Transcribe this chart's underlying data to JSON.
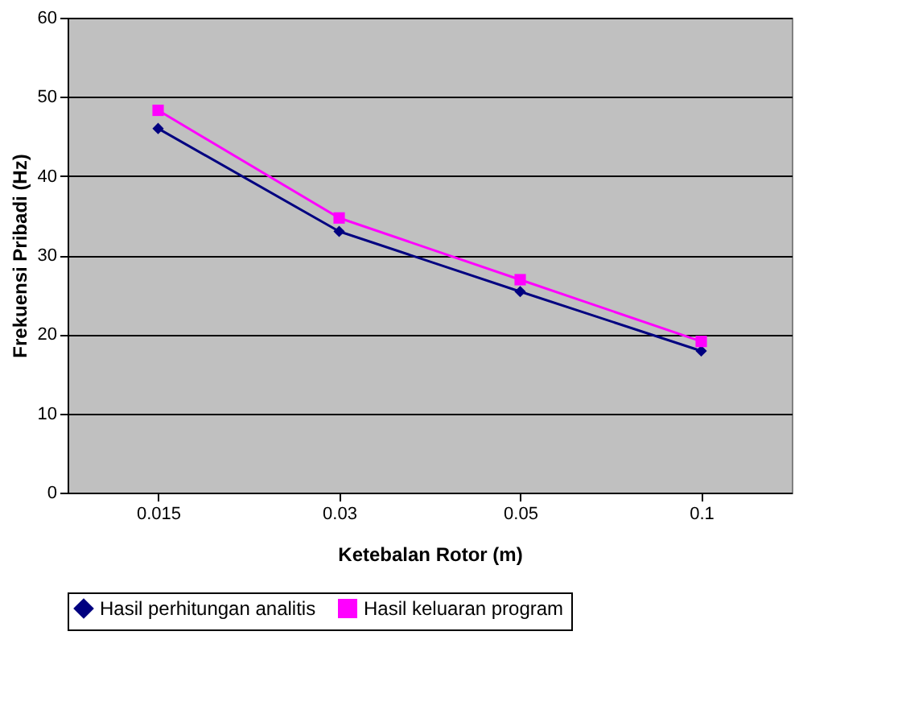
{
  "chart_data": {
    "type": "line",
    "xlabel": "Ketebalan Rotor (m)",
    "ylabel": "Frekuensi Pribadi (Hz)",
    "categories": [
      "0.015",
      "0.03",
      "0.05",
      "0.1"
    ],
    "series": [
      {
        "name": "Hasil perhitungan analitis",
        "color": "#000080",
        "marker": "diamond",
        "values": [
          46.0,
          33.0,
          25.4,
          17.9
        ]
      },
      {
        "name": "Hasil keluaran program",
        "color": "#ff00ff",
        "marker": "square",
        "values": [
          48.3,
          34.7,
          26.9,
          19.1
        ]
      }
    ],
    "ylim": [
      0,
      60
    ],
    "yticks": [
      0,
      10,
      20,
      30,
      40,
      50,
      60
    ],
    "grid": "y",
    "legend": "bottom",
    "line_style": "solid"
  }
}
